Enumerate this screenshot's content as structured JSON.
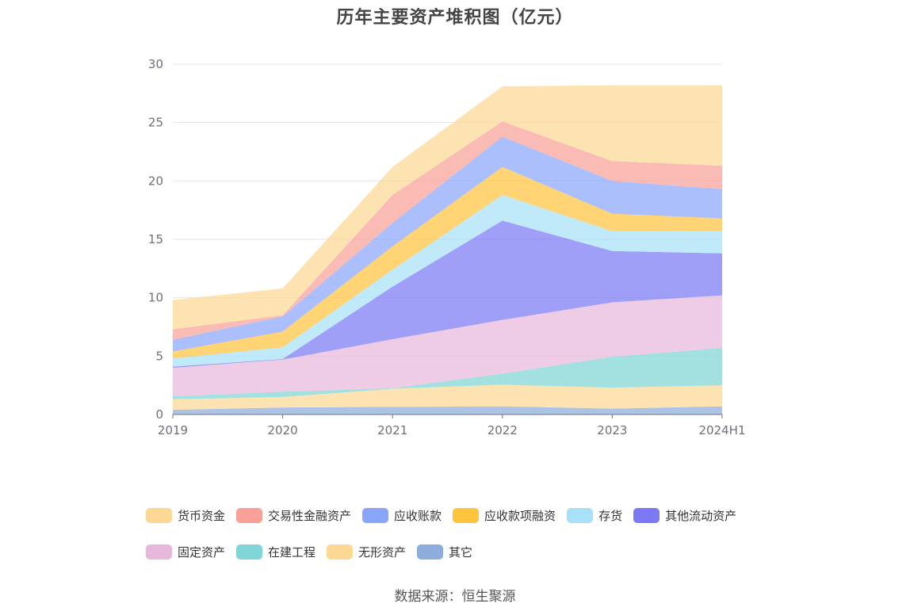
{
  "title": "历年主要资产堆积图（亿元）",
  "source": "数据来源：恒生聚源",
  "colors": {
    "货币资金": "#fdd894",
    "交易性金融资产": "#f9a198",
    "应收账款": "#8aa6fb",
    "应收款项融资": "#fec43e",
    "存货": "#a8e0f8",
    "其他流动资产": "#7b7af4",
    "固定资产": "#e8b8dc",
    "在建工程": "#80d6d6",
    "无形资产": "#fdd894",
    "其它": "#8eacdc"
  },
  "chart_data": {
    "type": "area",
    "stacked": true,
    "title": "历年主要资产堆积图（亿元）",
    "categories": [
      "2019",
      "2020",
      "2021",
      "2022",
      "2023",
      "2024H1"
    ],
    "ylim": [
      0,
      30
    ],
    "yticks": [
      0,
      5,
      10,
      15,
      20,
      25,
      30
    ],
    "grid": true,
    "legend_position": "bottom",
    "series": [
      {
        "name": "其它",
        "values": [
          0.4,
          0.6,
          0.65,
          0.7,
          0.5,
          0.7
        ]
      },
      {
        "name": "无形资产",
        "values": [
          0.9,
          0.9,
          1.55,
          1.85,
          1.8,
          1.8
        ]
      },
      {
        "name": "在建工程",
        "values": [
          0.25,
          0.45,
          0.05,
          0.95,
          2.65,
          3.2
        ]
      },
      {
        "name": "固定资产",
        "values": [
          2.45,
          2.75,
          4.2,
          4.6,
          4.65,
          4.5
        ]
      },
      {
        "name": "其他流动资产",
        "values": [
          0.1,
          0.05,
          4.5,
          8.5,
          4.4,
          3.6
        ]
      },
      {
        "name": "存货",
        "values": [
          0.7,
          1.0,
          1.45,
          2.2,
          1.7,
          1.95
        ]
      },
      {
        "name": "应收款项融资",
        "values": [
          0.6,
          1.35,
          2.0,
          2.4,
          1.5,
          1.05
        ]
      },
      {
        "name": "应收账款",
        "values": [
          1.0,
          1.3,
          2.0,
          2.6,
          2.8,
          2.5
        ]
      },
      {
        "name": "交易性金融资产",
        "values": [
          0.9,
          0.1,
          2.4,
          1.3,
          1.7,
          2.0
        ]
      },
      {
        "name": "货币资金",
        "values": [
          2.5,
          2.3,
          2.4,
          3.0,
          6.5,
          6.9
        ]
      }
    ]
  },
  "legend": [
    "货币资金",
    "交易性金融资产",
    "应收账款",
    "应收款项融资",
    "存货",
    "其他流动资产",
    "固定资产",
    "在建工程",
    "无形资产",
    "其它"
  ]
}
